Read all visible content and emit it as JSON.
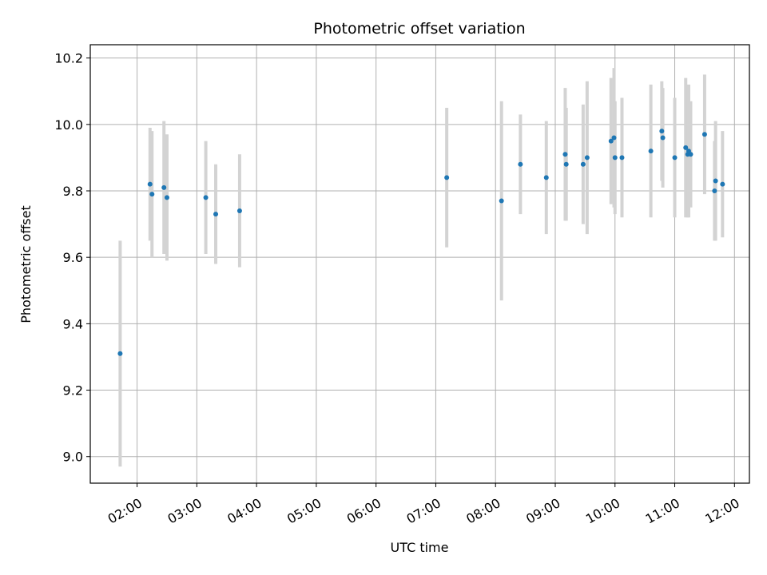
{
  "chart_data": {
    "type": "scatter",
    "title": "Photometric offset variation",
    "xlabel": "UTC time",
    "ylabel": "Photometric offset",
    "x_unit": "time of day (UTC)",
    "xlim": [
      "01:13",
      "12:15"
    ],
    "ylim": [
      8.92,
      10.24
    ],
    "grid": true,
    "x_ticks": [
      "02:00",
      "03:00",
      "04:00",
      "05:00",
      "06:00",
      "07:00",
      "08:00",
      "09:00",
      "10:00",
      "11:00",
      "12:00"
    ],
    "y_ticks": [
      "9.0",
      "9.2",
      "9.4",
      "9.6",
      "9.8",
      "10.0",
      "10.2"
    ],
    "colors": {
      "points": "#1f77b4",
      "error_bars": "#d3d3d3",
      "grid": "#b0b0b0"
    },
    "series": [
      {
        "points": [
          {
            "x": "01:43",
            "y": 9.31,
            "yerr": 0.34
          },
          {
            "x": "02:13",
            "y": 9.82,
            "yerr": 0.17
          },
          {
            "x": "02:15",
            "y": 9.79,
            "yerr": 0.19
          },
          {
            "x": "02:27",
            "y": 9.81,
            "yerr": 0.2
          },
          {
            "x": "02:30",
            "y": 9.78,
            "yerr": 0.19
          },
          {
            "x": "03:09",
            "y": 9.78,
            "yerr": 0.17
          },
          {
            "x": "03:19",
            "y": 9.73,
            "yerr": 0.15
          },
          {
            "x": "03:43",
            "y": 9.74,
            "yerr": 0.17
          },
          {
            "x": "07:11",
            "y": 9.84,
            "yerr": 0.21
          },
          {
            "x": "08:06",
            "y": 9.77,
            "yerr": 0.3
          },
          {
            "x": "08:25",
            "y": 9.88,
            "yerr": 0.15
          },
          {
            "x": "08:51",
            "y": 9.84,
            "yerr": 0.17
          },
          {
            "x": "09:10",
            "y": 9.91,
            "yerr": 0.2
          },
          {
            "x": "09:11",
            "y": 9.88,
            "yerr": 0.17
          },
          {
            "x": "09:28",
            "y": 9.88,
            "yerr": 0.18
          },
          {
            "x": "09:32",
            "y": 9.9,
            "yerr": 0.23
          },
          {
            "x": "09:56",
            "y": 9.95,
            "yerr": 0.19
          },
          {
            "x": "09:59",
            "y": 9.96,
            "yerr": 0.21
          },
          {
            "x": "10:00",
            "y": 9.9,
            "yerr": 0.17
          },
          {
            "x": "10:07",
            "y": 9.9,
            "yerr": 0.18
          },
          {
            "x": "10:36",
            "y": 9.92,
            "yerr": 0.2
          },
          {
            "x": "10:47",
            "y": 9.98,
            "yerr": 0.15
          },
          {
            "x": "10:48",
            "y": 9.96,
            "yerr": 0.15
          },
          {
            "x": "11:00",
            "y": 9.9,
            "yerr": 0.18
          },
          {
            "x": "11:11",
            "y": 9.93,
            "yerr": 0.21
          },
          {
            "x": "11:13",
            "y": 9.91,
            "yerr": 0.19
          },
          {
            "x": "11:14",
            "y": 9.92,
            "yerr": 0.2
          },
          {
            "x": "11:16",
            "y": 9.91,
            "yerr": 0.16
          },
          {
            "x": "11:30",
            "y": 9.97,
            "yerr": 0.18
          },
          {
            "x": "11:40",
            "y": 9.8,
            "yerr": 0.15
          },
          {
            "x": "11:41",
            "y": 9.83,
            "yerr": 0.18
          },
          {
            "x": "11:48",
            "y": 9.82,
            "yerr": 0.16
          }
        ]
      }
    ]
  }
}
